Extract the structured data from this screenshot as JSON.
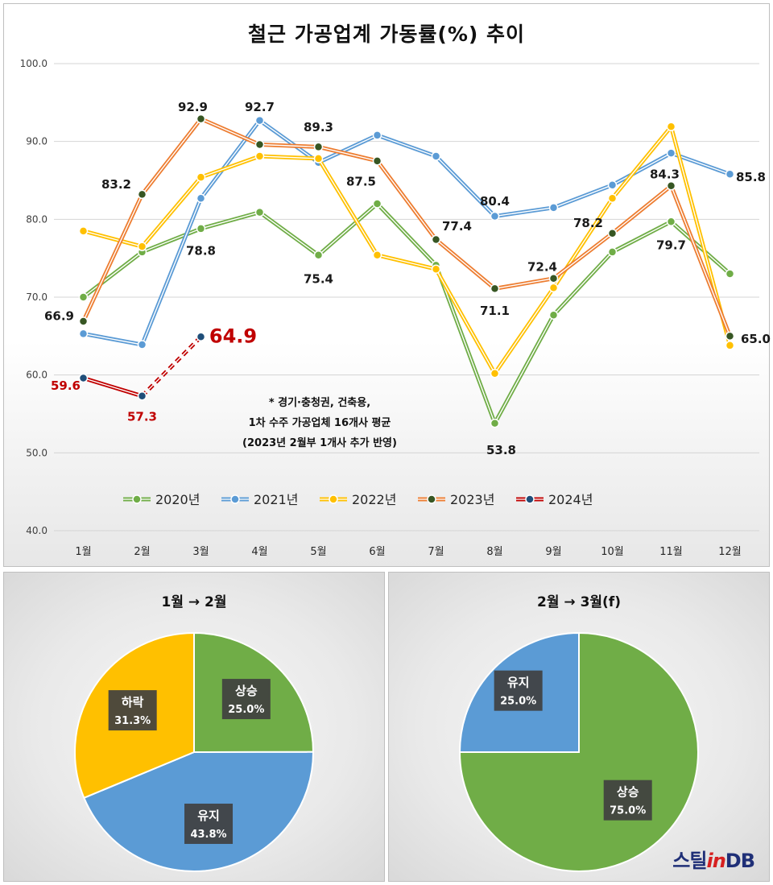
{
  "chart_data": [
    {
      "type": "line",
      "title": "철근 가공업계 가동률(%) 추이",
      "categories": [
        "1월",
        "2월",
        "3월",
        "4월",
        "5월",
        "6월",
        "7월",
        "8월",
        "9월",
        "10월",
        "11월",
        "12월"
      ],
      "ylim": [
        40,
        100
      ],
      "yticks": [
        "40.0",
        "50.0",
        "60.0",
        "70.0",
        "80.0",
        "90.0",
        "100.0"
      ],
      "grid": true,
      "legend_position": "bottom-center",
      "series": [
        {
          "name": "2020년",
          "color": "#70ad47",
          "values": [
            70.0,
            75.8,
            78.8,
            80.9,
            75.4,
            82.0,
            74.1,
            53.8,
            67.7,
            75.8,
            79.7,
            73.0
          ],
          "labels": {
            "2": "78.8",
            "4": "75.4",
            "7": "53.8",
            "10": "79.7"
          }
        },
        {
          "name": "2021년",
          "color": "#5b9bd5",
          "values": [
            65.3,
            63.9,
            82.7,
            92.7,
            87.3,
            90.8,
            88.1,
            80.4,
            81.5,
            84.4,
            88.5,
            85.8
          ],
          "labels": {
            "3": "92.7",
            "7": "80.4",
            "11": "85.8"
          }
        },
        {
          "name": "2022년",
          "color": "#ffc000",
          "values": [
            78.5,
            76.5,
            85.4,
            88.1,
            87.8,
            75.4,
            73.6,
            60.2,
            71.2,
            82.7,
            91.9,
            63.8
          ],
          "labels": {}
        },
        {
          "name": "2023년",
          "color": "#ed7d31",
          "values": [
            66.9,
            83.2,
            92.9,
            89.6,
            89.3,
            87.5,
            77.4,
            71.1,
            72.4,
            78.2,
            84.3,
            65.0
          ],
          "labels": {
            "0": "66.9",
            "1": "83.2",
            "2": "92.9",
            "4": "89.3",
            "5": "87.5",
            "6": "77.4",
            "7": "71.1",
            "8": "72.4",
            "9": "78.2",
            "10": "84.3",
            "11": "65.0"
          }
        },
        {
          "name": "2024년",
          "color": "#c00000",
          "values": [
            59.6,
            57.3,
            64.9,
            null,
            null,
            null,
            null,
            null,
            null,
            null,
            null,
            null
          ],
          "forecast_from_index": 1,
          "labels": {
            "0": "59.6",
            "1": "57.3",
            "2": "64.9"
          }
        }
      ],
      "annotation": [
        "* 경기·충청권, 건축용,",
        "1차 수주 가공업체 16개사 평균",
        "(2023년 2월부 1개사 추가 반영)"
      ]
    },
    {
      "type": "pie",
      "title": "1월 → 2월",
      "slices": [
        {
          "label": "상승",
          "value": 25.0,
          "pct": "25.0%",
          "color": "#70ad47"
        },
        {
          "label": "유지",
          "value": 43.8,
          "pct": "43.8%",
          "color": "#5b9bd5"
        },
        {
          "label": "하락",
          "value": 31.3,
          "pct": "31.3%",
          "color": "#ffc000"
        }
      ]
    },
    {
      "type": "pie",
      "title": "2월 → 3월(f)",
      "slices": [
        {
          "label": "상승",
          "value": 75.0,
          "pct": "75.0%",
          "color": "#70ad47"
        },
        {
          "label": "유지",
          "value": 25.0,
          "pct": "25.0%",
          "color": "#5b9bd5"
        }
      ]
    }
  ],
  "logo": {
    "part1": "스틸",
    "part2": "in",
    "part3": "DB"
  }
}
